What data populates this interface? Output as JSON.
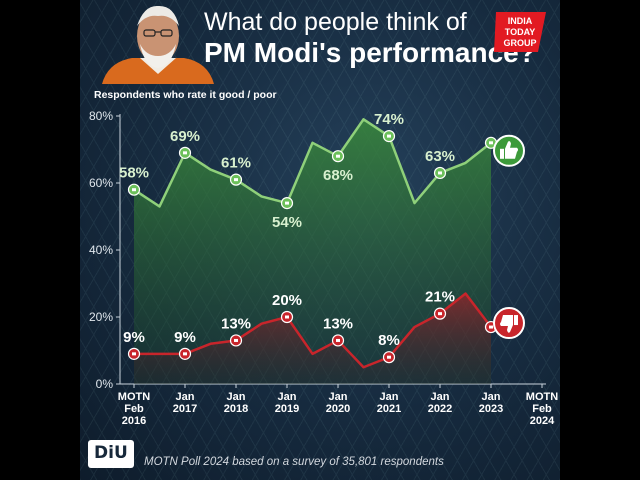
{
  "header": {
    "title_line1": "What do people think of",
    "title_line2": "PM Modi's performance?",
    "subtitle": "Respondents who rate it good / poor",
    "logo": {
      "line1": "INDIA",
      "line2": "TODAY",
      "line3": "GROUP"
    }
  },
  "footer": {
    "badge": "DiU",
    "note": "MOTN Poll 2024 based on a survey of 35,801 respondents"
  },
  "colors": {
    "good": "#8fd07a",
    "good_fill": "#2a6d2f",
    "poor": "#c8252b",
    "poor_fill": "#6a1a20",
    "axis_text": "#ffffff",
    "logo_red": "#e21a22"
  },
  "icons": [
    "thumbs-up-icon",
    "thumbs-down-icon"
  ],
  "chart_data": {
    "type": "line",
    "title": "What do people think of PM Modi's performance?",
    "ylabel": "Respondents who rate it good / poor",
    "ylim": [
      0,
      80
    ],
    "yticks": [
      0,
      20,
      40,
      60,
      80
    ],
    "ytick_labels": [
      "0%",
      "20%",
      "40%",
      "60%",
      "80%"
    ],
    "xlim": [
      0,
      16
    ],
    "xticks": [
      {
        "pos": 0,
        "label": [
          "MOTN",
          "Feb",
          "2016"
        ]
      },
      {
        "pos": 2,
        "label": [
          "Jan",
          "2017"
        ]
      },
      {
        "pos": 4,
        "label": [
          "Jan",
          "2018"
        ]
      },
      {
        "pos": 6,
        "label": [
          "Jan",
          "2019"
        ]
      },
      {
        "pos": 8,
        "label": [
          "Jan",
          "2020"
        ]
      },
      {
        "pos": 10,
        "label": [
          "Jan",
          "2021"
        ]
      },
      {
        "pos": 12,
        "label": [
          "Jan",
          "2022"
        ]
      },
      {
        "pos": 14,
        "label": [
          "Jan",
          "2023"
        ]
      },
      {
        "pos": 16,
        "label": [
          "MOTN",
          "Feb",
          "2024"
        ]
      }
    ],
    "series": [
      {
        "name": "Good",
        "x": [
          0,
          1,
          2,
          3,
          4,
          5,
          6,
          7,
          8,
          9,
          10,
          11,
          12,
          13,
          14
        ],
        "values": [
          58,
          53,
          69,
          64,
          61,
          56,
          54,
          72,
          68,
          79,
          74,
          54,
          63,
          66,
          72
        ],
        "labeled": [
          {
            "x": 0,
            "label": "58%"
          },
          {
            "x": 2,
            "label": "69%"
          },
          {
            "x": 4,
            "label": "61%"
          },
          {
            "x": 6,
            "label": "54%"
          },
          {
            "x": 8,
            "label": "68%"
          },
          {
            "x": 10,
            "label": "74%"
          },
          {
            "x": 12,
            "label": "63%"
          }
        ],
        "markers": [
          0,
          2,
          4,
          6,
          8,
          10,
          12,
          14
        ]
      },
      {
        "name": "Poor",
        "x": [
          0,
          1,
          2,
          3,
          4,
          5,
          6,
          7,
          8,
          9,
          10,
          11,
          12,
          13,
          14
        ],
        "values": [
          9,
          9,
          9,
          12,
          13,
          18,
          20,
          9,
          13,
          5,
          8,
          17,
          21,
          27,
          17
        ],
        "labeled": [
          {
            "x": 0,
            "label": "9%"
          },
          {
            "x": 2,
            "label": "9%"
          },
          {
            "x": 4,
            "label": "13%"
          },
          {
            "x": 6,
            "label": "20%"
          },
          {
            "x": 8,
            "label": "13%"
          },
          {
            "x": 10,
            "label": "8%"
          },
          {
            "x": 12,
            "label": "21%"
          }
        ],
        "markers": [
          0,
          2,
          4,
          6,
          8,
          10,
          12,
          14
        ]
      }
    ]
  }
}
